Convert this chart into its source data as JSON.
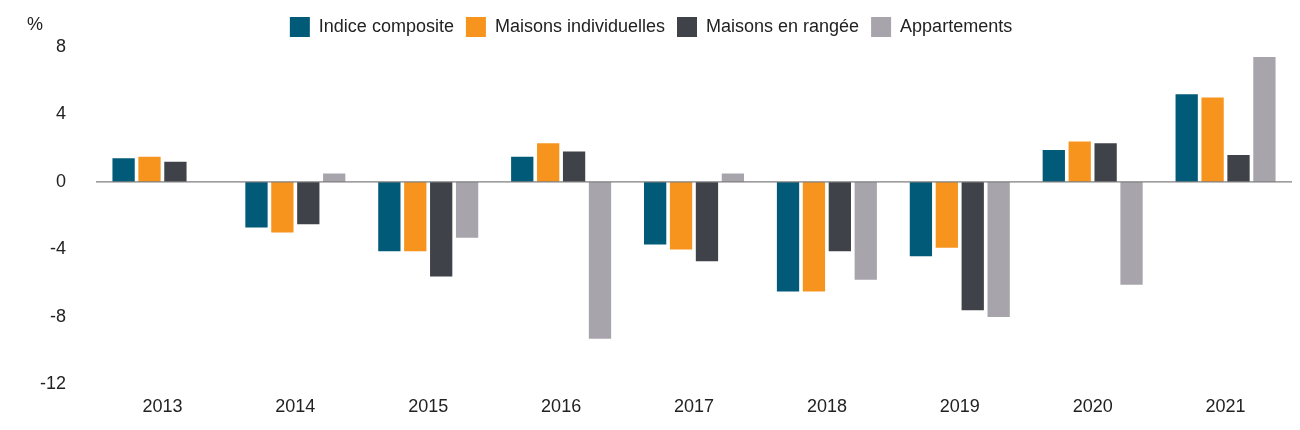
{
  "chart_data": {
    "type": "bar",
    "ylabel": "%",
    "categories": [
      "2013",
      "2014",
      "2015",
      "2016",
      "2017",
      "2018",
      "2019",
      "2020",
      "2021"
    ],
    "series": [
      {
        "name": "Indice composite",
        "color": "#005a78",
        "values": [
          1.4,
          -2.7,
          -4.1,
          1.5,
          -3.7,
          -6.5,
          -4.4,
          1.9,
          5.2
        ]
      },
      {
        "name": "Maisons individuelles",
        "color": "#f7941d",
        "values": [
          1.5,
          -3.0,
          -4.1,
          2.3,
          -4.0,
          -6.5,
          -3.9,
          2.4,
          5.0
        ]
      },
      {
        "name": "Maisons en rangée",
        "color": "#3f4249",
        "values": [
          1.2,
          -2.5,
          -5.6,
          1.8,
          -4.7,
          -4.1,
          -7.6,
          2.3,
          1.6
        ]
      },
      {
        "name": "Appartements",
        "color": "#a7a5ab",
        "values": [
          0,
          0.5,
          -3.3,
          -9.3,
          0.5,
          -5.8,
          -8.0,
          -6.1,
          7.4
        ]
      }
    ],
    "ref_lines": [
      {
        "axis": "y",
        "value": 0,
        "color": "#7f7f7f"
      }
    ],
    "ylim": [
      -12,
      8
    ],
    "yticks": [
      -12,
      -8,
      -4,
      0,
      4,
      8
    ],
    "grid": false,
    "legend": "top"
  }
}
